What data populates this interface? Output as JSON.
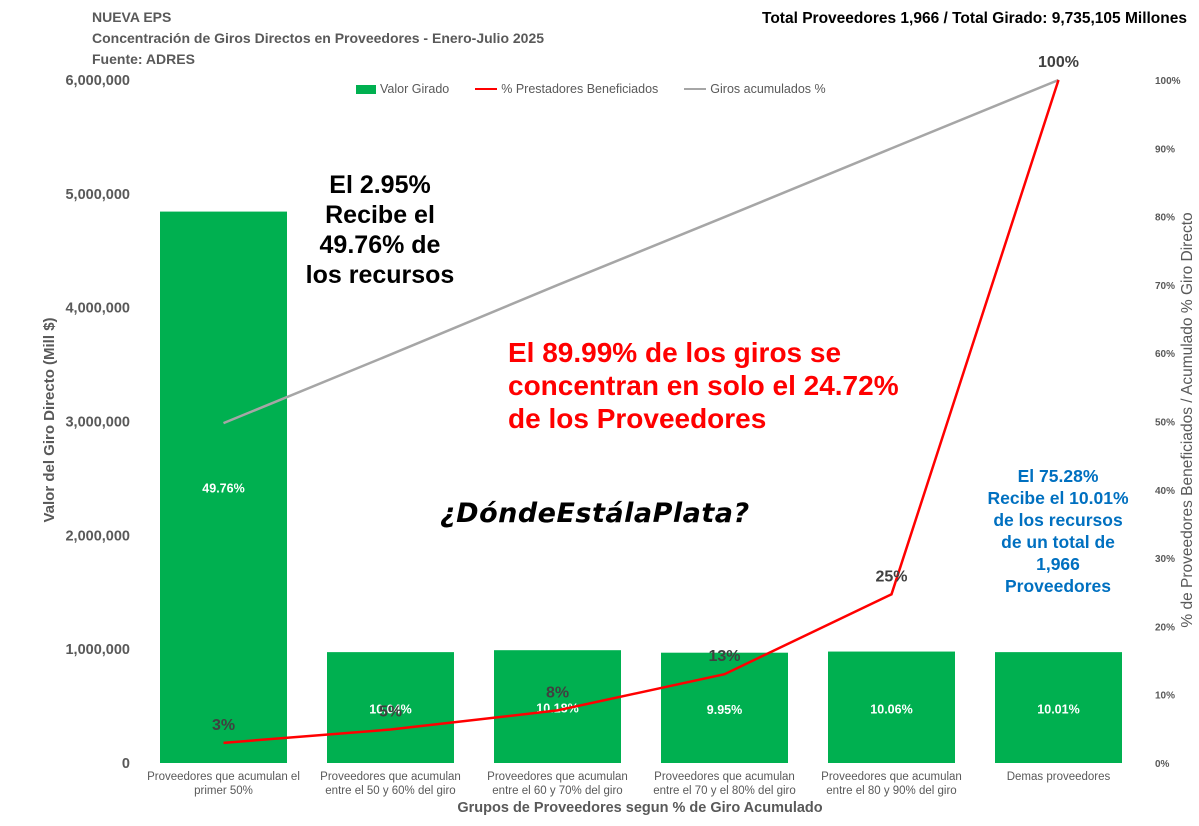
{
  "header": {
    "line1": "NUEVA EPS",
    "line2": "Concentración de Giros Directos en Proveedores - Enero-Julio 2025",
    "line3": "Fuente: ADRES",
    "total": "Total Proveedores  1,966  / Total Girado:  9,735,105  Millones"
  },
  "annotations": {
    "black": "El 2.95%\nRecibe el\n49.76% de\nlos recursos",
    "red": "El 89.99% de los giros se concentran en solo el 24.72% de los Proveedores",
    "blue": "El 75.28%\nRecibe el 10.01%\nde los recursos\nde un total de\n1,966\nProveedores",
    "hashtag": "¿DóndeEstálaPlata?"
  },
  "colors": {
    "bar": "#00b050",
    "red_line": "#ff0000",
    "grey_line": "#a6a6a6"
  },
  "chart_data": {
    "type": "bar",
    "xlabel": "Grupos de Proveedores segun % de Giro Acumulado",
    "ylabel": "Valor del Giro Directo (Mill $)",
    "y2label": "% de Proveedores Beneficiados / Acumulado % Giro Directo",
    "ylim": [
      0,
      6000000
    ],
    "y2lim": [
      0,
      100
    ],
    "yticks": [
      "0",
      "1,000,000",
      "2,000,000",
      "3,000,000",
      "4,000,000",
      "5,000,000",
      "6,000,000"
    ],
    "y2ticks": [
      "0%",
      "10%",
      "20%",
      "30%",
      "40%",
      "50%",
      "60%",
      "70%",
      "80%",
      "90%",
      "100%"
    ],
    "legend_position": "top",
    "grid": false,
    "categories": [
      [
        "Proveedores que acumulan el",
        "primer 50%"
      ],
      [
        "Proveedores que acumulan",
        "entre el 50 y  60% del giro"
      ],
      [
        "Proveedores que acumulan",
        "entre el 60 y 70% del giro"
      ],
      [
        "Proveedores que acumulan",
        "entre el 70 y el 80% del giro"
      ],
      [
        "Proveedores que acumulan",
        "entre el 80 y 90% del giro"
      ],
      [
        "Demas proveedores"
      ]
    ],
    "series": [
      {
        "name": "Valor Girado",
        "type": "bar",
        "axis": "left",
        "values": [
          4844000,
          974000,
          991000,
          969000,
          979000,
          974000
        ],
        "labels": [
          "49.76%",
          "10.04%",
          "10.18%",
          "9.95%",
          "10.06%",
          "10.01%"
        ]
      },
      {
        "name": "% Prestadores Beneficiados",
        "type": "line",
        "axis": "right",
        "values": [
          2.95,
          4.9,
          7.7,
          13.0,
          24.7,
          100
        ],
        "labels": [
          "3%",
          "5%",
          "8%",
          "13%",
          "25%",
          "100%"
        ]
      },
      {
        "name": "Giros acumulados %",
        "type": "line",
        "axis": "right",
        "values": [
          49.76,
          59.8,
          69.98,
          79.93,
          89.99,
          100
        ]
      }
    ]
  }
}
